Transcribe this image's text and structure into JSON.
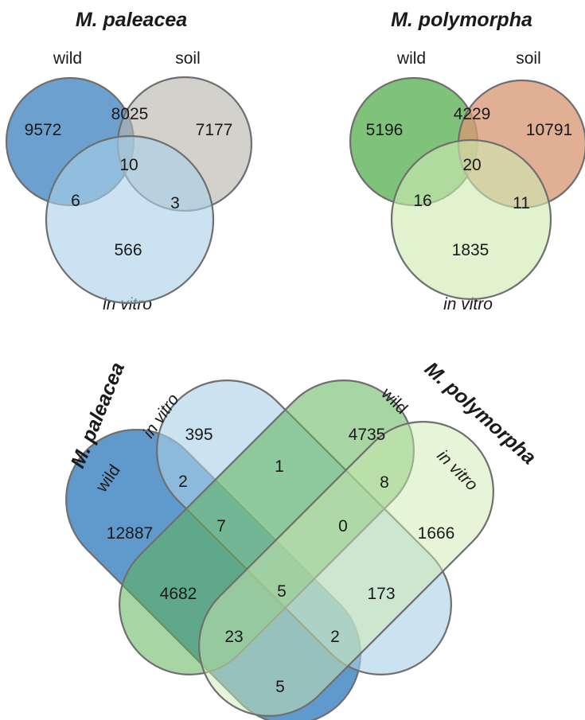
{
  "colors": {
    "paleacea_wild": "#4a8bc4",
    "paleacea_soil": "#b8b4ad",
    "paleacea_invitro": "#a9d0e8",
    "polymorpha_wild": "#5fb45a",
    "polymorpha_soil": "#d99874",
    "polymorpha_invitro": "#cdeab0",
    "outline": "#6f6f6f"
  },
  "venn_paleacea": {
    "title": "M. paleacea",
    "labels": {
      "wild": "wild",
      "soil": "soil",
      "invitro": "in vitro"
    },
    "counts": {
      "wild_only": "9572",
      "wild_soil": "8025",
      "soil_only": "7177",
      "all_three": "10",
      "wild_invitro": "6",
      "soil_invitro": "3",
      "invitro_only": "566"
    }
  },
  "venn_polymorpha": {
    "title": "M. polymorpha",
    "labels": {
      "wild": "wild",
      "soil": "soil",
      "invitro": "in vitro"
    },
    "counts": {
      "wild_only": "5196",
      "wild_soil": "4229",
      "soil_only": "10791",
      "all_three": "20",
      "wild_invitro": "16",
      "soil_invitro": "11",
      "invitro_only": "1835"
    }
  },
  "venn_four": {
    "title_left": "M. paleacea",
    "title_right": "M. polymorpha",
    "labels": {
      "left_wild": "wild",
      "left_invitro": "in vitro",
      "right_wild": "wild",
      "right_invitro": "in vitro"
    },
    "counts": {
      "pa_vitro_only": "395",
      "pm_wild_only": "4735",
      "pa_wild_pa_vitro": "2",
      "pa_vitro_pm_wild": "1",
      "pm_wild_pm_vitro": "8",
      "pa_wild_only": "12887",
      "pa_wild_pa_vitro_pm_wild": "7",
      "pa_vitro_pm_wild_pm_vitro": "0",
      "pm_vitro_only": "1666",
      "pa_wild_pm_wild": "4682",
      "all_four": "5",
      "pa_vitro_pm_vitro": "173",
      "pa_wild_pm_wild_pm_vitro": "23",
      "pa_wild_pa_vitro_pm_vitro": "2",
      "pa_wild_pm_vitro": "5"
    }
  }
}
